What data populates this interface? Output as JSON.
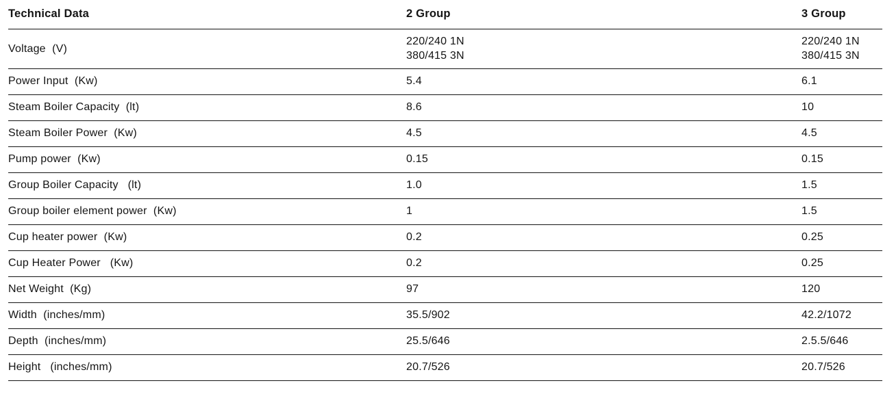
{
  "table": {
    "columns": [
      {
        "label": "Technical Data"
      },
      {
        "label": "2 Group"
      },
      {
        "label": "3 Group"
      }
    ],
    "rows": [
      {
        "label": "Voltage  (V)",
        "group2": "220/240 1N\n380/415 3N",
        "group3": "220/240 1N\n380/415 3N"
      },
      {
        "label": "Power Input  (Kw)",
        "group2": "5.4",
        "group3": "6.1"
      },
      {
        "label": "Steam Boiler Capacity  (lt)",
        "group2": "8.6",
        "group3": "10"
      },
      {
        "label": "Steam Boiler Power  (Kw)",
        "group2": "4.5",
        "group3": "4.5"
      },
      {
        "label": "Pump power  (Kw)",
        "group2": "0.15",
        "group3": "0.15"
      },
      {
        "label": "Group Boiler Capacity   (lt)",
        "group2": "1.0",
        "group3": "1.5"
      },
      {
        "label": "Group boiler element power  (Kw)",
        "group2": "1",
        "group3": "1.5"
      },
      {
        "label": "Cup heater power  (Kw)",
        "group2": "0.2",
        "group3": "0.25"
      },
      {
        "label": "Cup Heater Power   (Kw)",
        "group2": "0.2",
        "group3": "0.25"
      },
      {
        "label": "Net Weight  (Kg)",
        "group2": "97",
        "group3": "120"
      },
      {
        "label": "Width  (inches/mm)",
        "group2": "35.5/902",
        "group3": "42.2/1072"
      },
      {
        "label": "Depth  (inches/mm)",
        "group2": "25.5/646",
        "group3": "2.5.5/646"
      },
      {
        "label": "Height   (inches/mm)",
        "group2": "20.7/526",
        "group3": "20.7/526"
      }
    ]
  },
  "colors": {
    "text": "#141414",
    "rule": "#141414",
    "background": "#ffffff"
  }
}
